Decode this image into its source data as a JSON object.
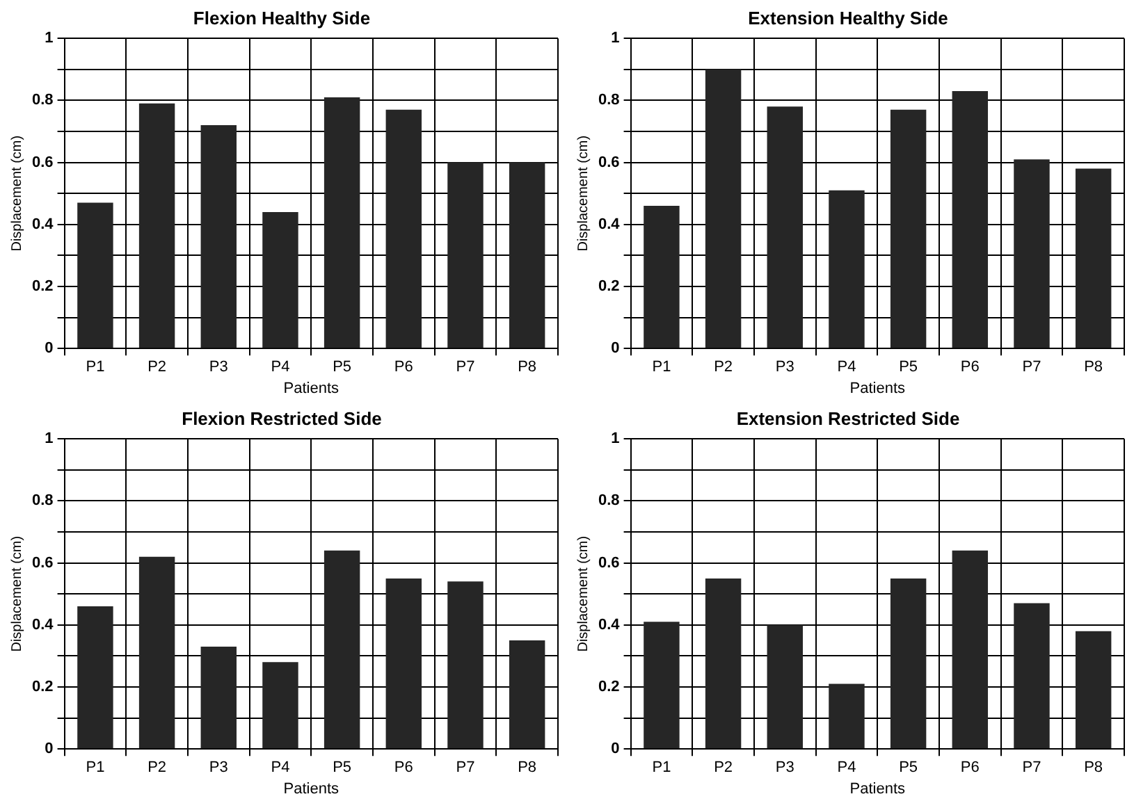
{
  "chart_data": [
    {
      "type": "bar",
      "title": "Flexion Healthy Side",
      "xlabel": "Patients",
      "ylabel": "Displacement (cm)",
      "categories": [
        "P1",
        "P2",
        "P3",
        "P4",
        "P5",
        "P6",
        "P7",
        "P8"
      ],
      "values": [
        0.47,
        0.79,
        0.72,
        0.44,
        0.81,
        0.77,
        0.6,
        0.6
      ],
      "color": "#262626",
      "ylim": [
        0,
        1
      ],
      "yticks": [
        0,
        {
          "value": 0.1,
          "label": null
        },
        0.2,
        {
          "value": 0.3,
          "label": null
        },
        0.4,
        {
          "value": 0.5,
          "label": null
        },
        0.6,
        {
          "value": 0.7,
          "label": null
        },
        0.8,
        {
          "value": 0.9,
          "label": null
        },
        1
      ],
      "grid": true,
      "legend": false
    },
    {
      "type": "bar",
      "title": "Extension Healthy Side",
      "xlabel": "Patients",
      "ylabel": "Displacement (cm)",
      "categories": [
        "P1",
        "P2",
        "P3",
        "P4",
        "P5",
        "P6",
        "P7",
        "P8"
      ],
      "values": [
        0.46,
        0.9,
        0.78,
        0.51,
        0.77,
        0.83,
        0.61,
        0.58
      ],
      "color": "#262626",
      "ylim": [
        0,
        1
      ],
      "yticks": [
        0,
        {
          "value": 0.1,
          "label": null
        },
        0.2,
        {
          "value": 0.3,
          "label": null
        },
        0.4,
        {
          "value": 0.5,
          "label": null
        },
        0.6,
        {
          "value": 0.7,
          "label": null
        },
        0.8,
        {
          "value": 0.9,
          "label": null
        },
        1
      ],
      "grid": true,
      "legend": false
    },
    {
      "type": "bar",
      "title": "Flexion Restricted Side",
      "xlabel": "Patients",
      "ylabel": "Displacement (cm)",
      "categories": [
        "P1",
        "P2",
        "P3",
        "P4",
        "P5",
        "P6",
        "P7",
        "P8"
      ],
      "values": [
        0.46,
        0.62,
        0.33,
        0.28,
        0.64,
        0.55,
        0.54,
        0.35
      ],
      "color": "#262626",
      "ylim": [
        0,
        1
      ],
      "yticks": [
        0,
        {
          "value": 0.1,
          "label": null
        },
        0.2,
        {
          "value": 0.3,
          "label": null
        },
        0.4,
        {
          "value": 0.5,
          "label": null
        },
        0.6,
        {
          "value": 0.7,
          "label": null
        },
        0.8,
        {
          "value": 0.9,
          "label": null
        },
        1
      ],
      "grid": true,
      "legend": false
    },
    {
      "type": "bar",
      "title": "Extension Restricted Side",
      "xlabel": "Patients",
      "ylabel": "Displacement (cm)",
      "categories": [
        "P1",
        "P2",
        "P3",
        "P4",
        "P5",
        "P6",
        "P7",
        "P8"
      ],
      "values": [
        0.41,
        0.55,
        0.4,
        0.21,
        0.55,
        0.64,
        0.47,
        0.38
      ],
      "color": "#262626",
      "ylim": [
        0,
        1
      ],
      "yticks": [
        0,
        {
          "value": 0.1,
          "label": null
        },
        0.2,
        {
          "value": 0.3,
          "label": null
        },
        0.4,
        {
          "value": 0.5,
          "label": null
        },
        0.6,
        {
          "value": 0.7,
          "label": null
        },
        0.8,
        {
          "value": 0.9,
          "label": null
        },
        1
      ],
      "grid": true,
      "legend": false
    }
  ]
}
